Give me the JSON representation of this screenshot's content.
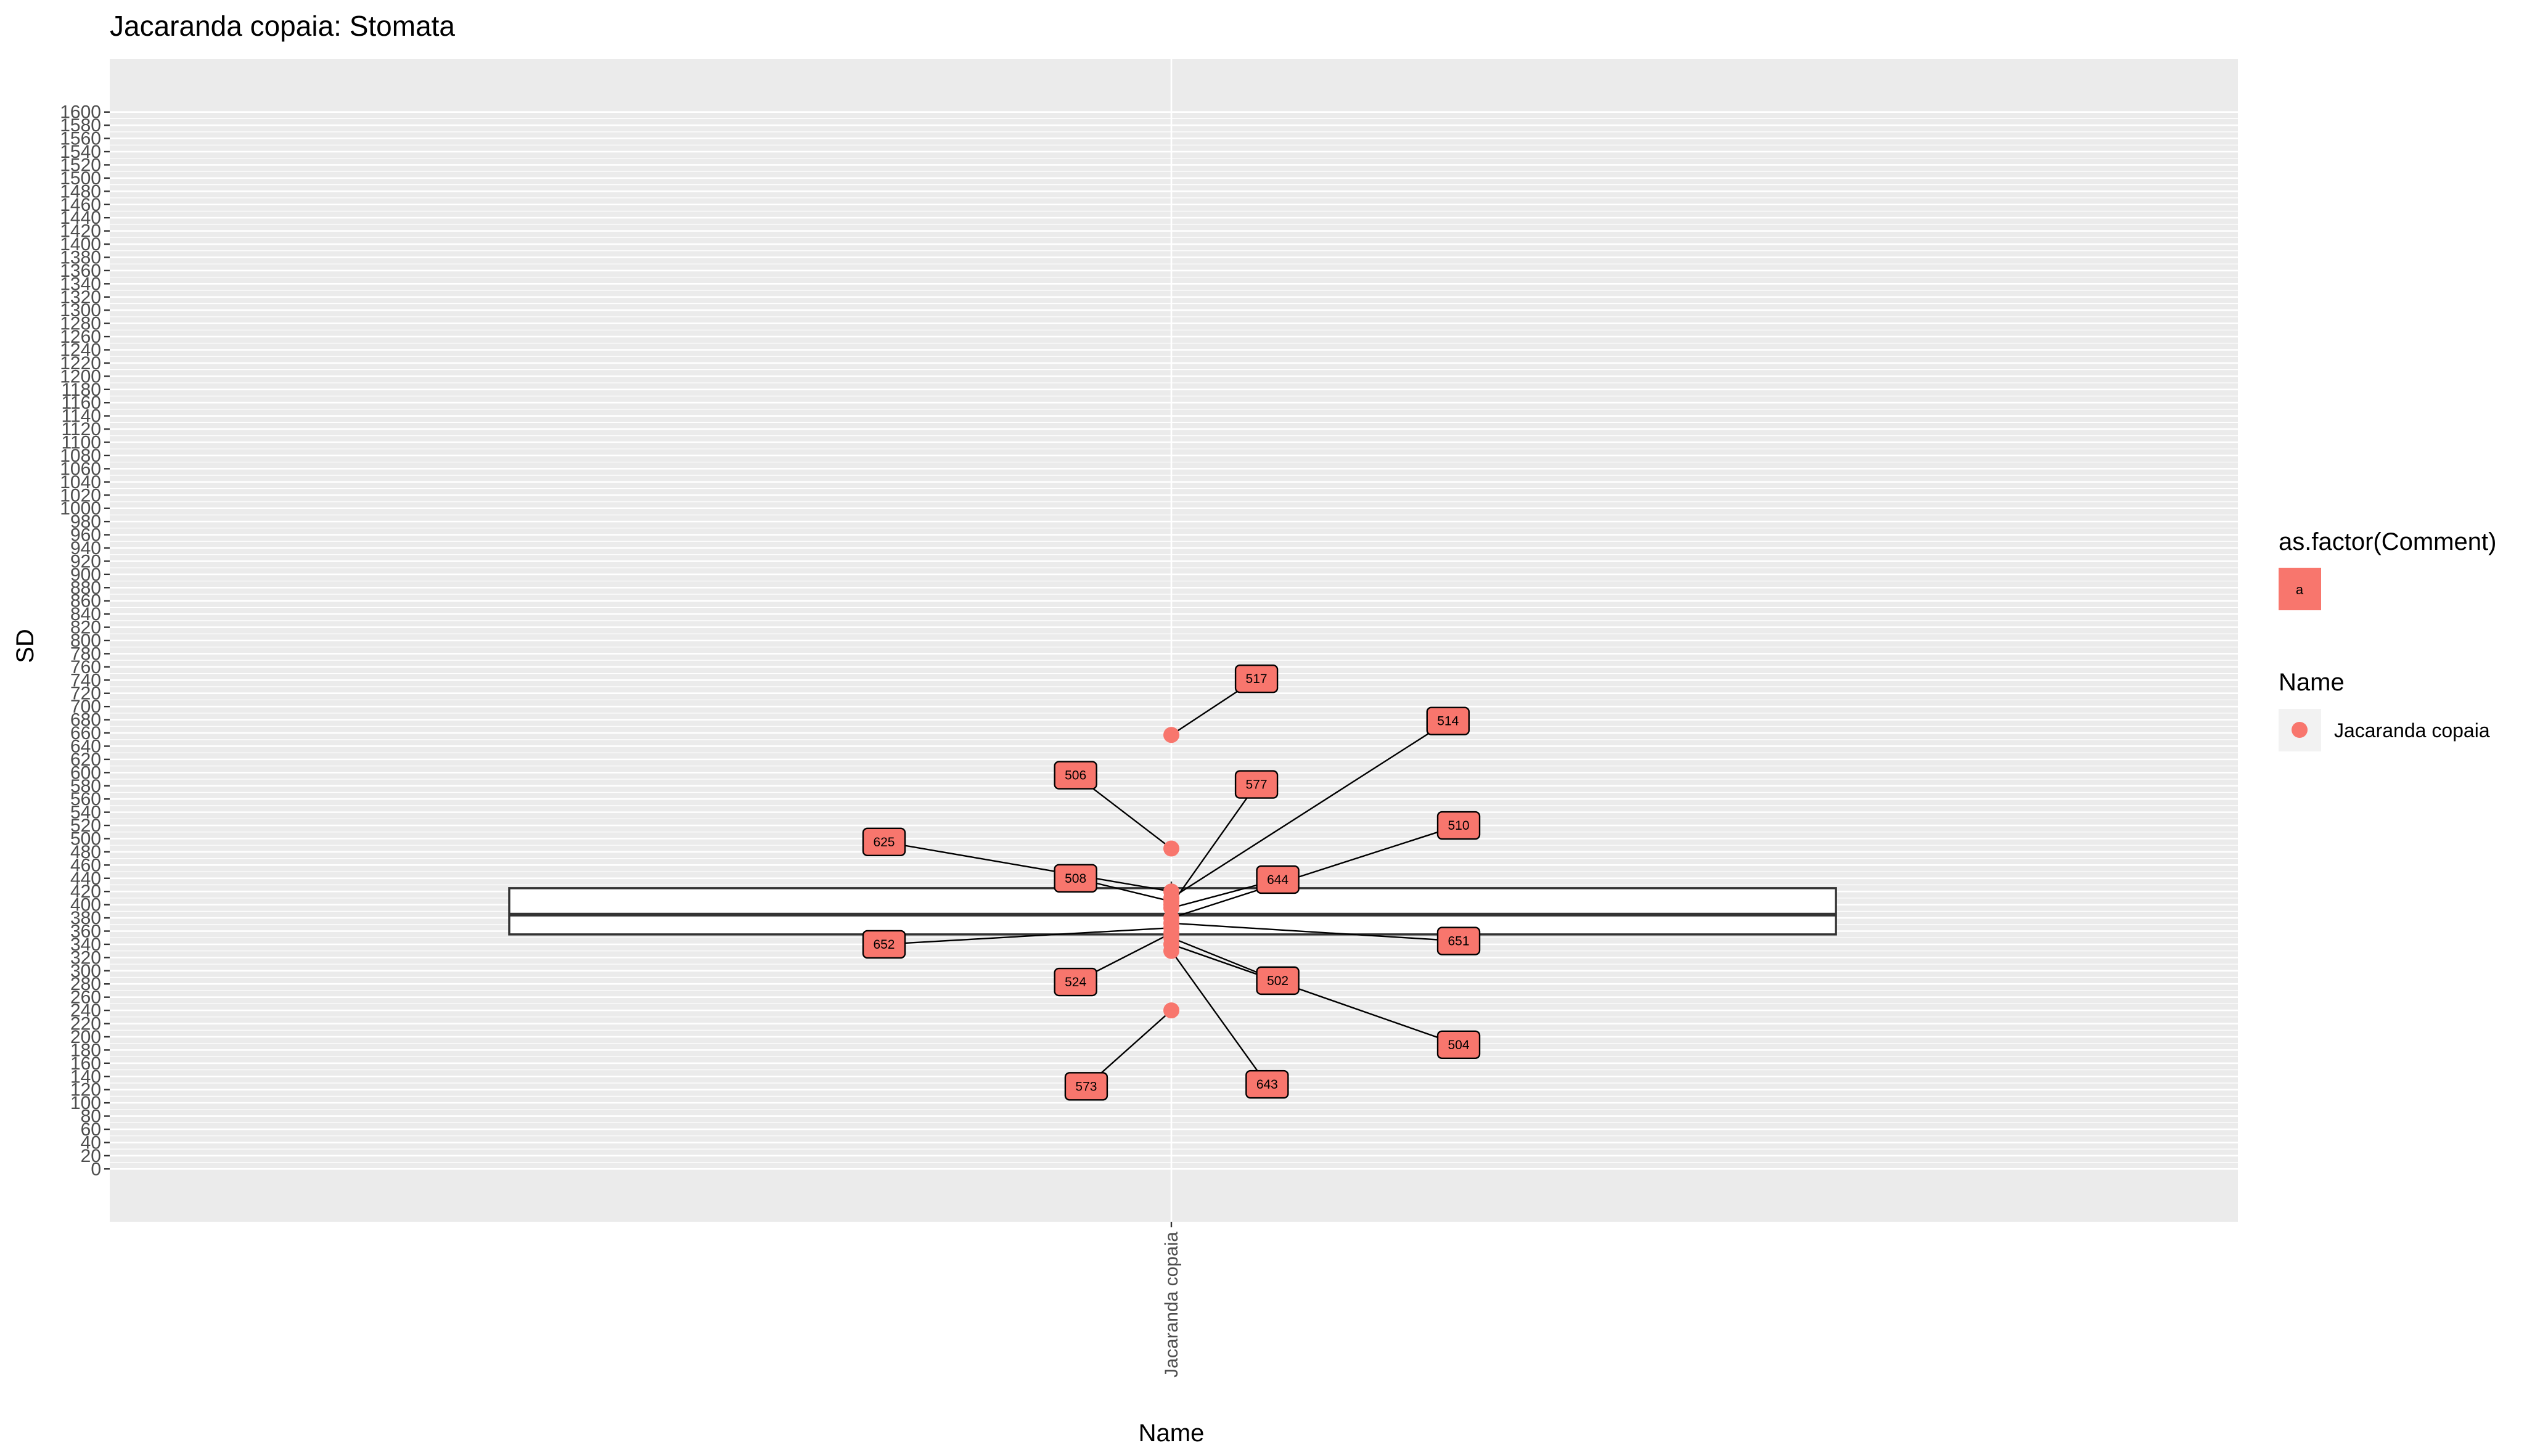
{
  "chart_data": {
    "type": "box",
    "title": "Jacaranda copaia: Stomata",
    "xlabel": "Name",
    "ylabel": "SD",
    "categories": [
      "Jacaranda copaia"
    ],
    "ylim": [
      -80,
      1680
    ],
    "y_ticks": [
      0,
      20,
      40,
      60,
      80,
      100,
      120,
      140,
      160,
      180,
      200,
      220,
      240,
      260,
      280,
      300,
      320,
      340,
      360,
      380,
      400,
      420,
      440,
      460,
      480,
      500,
      520,
      540,
      560,
      580,
      600,
      620,
      640,
      660,
      680,
      700,
      720,
      740,
      760,
      780,
      800,
      820,
      840,
      860,
      880,
      900,
      920,
      940,
      960,
      980,
      1000,
      1020,
      1040,
      1060,
      1080,
      1100,
      1120,
      1140,
      1160,
      1180,
      1200,
      1220,
      1240,
      1260,
      1280,
      1300,
      1320,
      1340,
      1360,
      1380,
      1400,
      1420,
      1440,
      1460,
      1480,
      1500,
      1520,
      1540,
      1560,
      1580,
      1600
    ],
    "grid": true,
    "box": {
      "q1": 355,
      "median": 385,
      "q3": 425,
      "whisker_low": 330,
      "whisker_high": 435
    },
    "points": [
      {
        "label": "517",
        "y": 657,
        "label_y": 742,
        "label_dx": 0.08
      },
      {
        "label": "514",
        "y": 410,
        "label_y": 678,
        "label_dx": 0.26
      },
      {
        "label": "506",
        "y": 485,
        "label_y": 596,
        "label_dx": -0.09
      },
      {
        "label": "577",
        "y": 400,
        "label_y": 582,
        "label_dx": 0.08
      },
      {
        "label": "510",
        "y": 380,
        "label_y": 520,
        "label_dx": 0.27
      },
      {
        "label": "625",
        "y": 420,
        "label_y": 495,
        "label_dx": -0.27
      },
      {
        "label": "508",
        "y": 405,
        "label_y": 440,
        "label_dx": -0.09
      },
      {
        "label": "644",
        "y": 395,
        "label_y": 438,
        "label_dx": 0.1
      },
      {
        "label": "651",
        "y": 372,
        "label_y": 345,
        "label_dx": 0.27
      },
      {
        "label": "652",
        "y": 365,
        "label_y": 340,
        "label_dx": -0.27
      },
      {
        "label": "524",
        "y": 357,
        "label_y": 283,
        "label_dx": -0.09
      },
      {
        "label": "502",
        "y": 350,
        "label_y": 285,
        "label_dx": 0.1
      },
      {
        "label": "504",
        "y": 340,
        "label_y": 188,
        "label_dx": 0.27
      },
      {
        "label": "573",
        "y": 240,
        "label_y": 125,
        "label_dx": -0.08
      },
      {
        "label": "643",
        "y": 330,
        "label_y": 128,
        "label_dx": 0.09
      }
    ],
    "legend": {
      "position": "right",
      "groups": [
        {
          "title": "as.factor(Comment)",
          "key_label": "a",
          "key_type": "label",
          "color": "#f8766d"
        },
        {
          "title": "Name",
          "entry": "Jacaranda copaia",
          "key_type": "point",
          "color": "#f8766d"
        }
      ]
    },
    "colors": {
      "point": "#f8766d",
      "label_fill": "#f8766d",
      "panel": "#ebebeb",
      "grid": "#ffffff"
    }
  }
}
